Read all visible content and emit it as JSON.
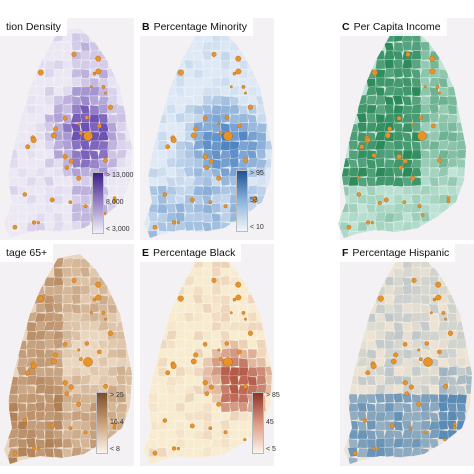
{
  "panels": [
    {
      "letter": "",
      "title": "tion Density",
      "fill": "#6e52b3",
      "base": "#ebe8f4",
      "legend": {
        "high": "> 13,000",
        "mid": "8,000",
        "low": "< 3,000",
        "colors": [
          "#3d1f86",
          "#9a86c8",
          "#f3f1f9"
        ]
      }
    },
    {
      "letter": "B",
      "title": "Percentage Minority",
      "fill": "#3674ba",
      "base": "#dfe9f5",
      "legend": {
        "high": "> 95",
        "mid": "53",
        "low": "< 10",
        "colors": [
          "#1d5394",
          "#8bb4dc",
          "#f1f6fb"
        ]
      }
    },
    {
      "letter": "C",
      "title": "Per Capita Income",
      "fill": "#2b8a5a",
      "base": "#bfe3d6",
      "legend": {
        "high": "",
        "mid": "",
        "low": "",
        "colors": [
          "#1a6b40",
          "#7ec29e",
          "#eef8f3"
        ]
      }
    },
    {
      "letter": "",
      "title": "tage 65+",
      "fill": "#a9764a",
      "base": "#ead6bf",
      "legend": {
        "high": "> 25",
        "mid": "16.4",
        "low": "< 8",
        "colors": [
          "#7a4e2a",
          "#c9a07a",
          "#fbf3ea"
        ]
      }
    },
    {
      "letter": "E",
      "title": "Percentage Black",
      "fill": "#b65a48",
      "base": "#f8ecd0",
      "legend": {
        "high": "> 85",
        "mid": "45",
        "low": "< 5",
        "colors": [
          "#8e3328",
          "#dc9a83",
          "#fdf4ec"
        ]
      }
    },
    {
      "letter": "F",
      "title": "Percentage Hispanic",
      "fill": "#5b8bb4",
      "base": "#ece3d3",
      "legend": {
        "high": "",
        "mid": "",
        "low": "",
        "colors": [
          "#3e6d99",
          "#a9c2d8",
          "#f4efe6"
        ]
      }
    }
  ],
  "colors": {
    "marker": "#e8922a",
    "marker_edge": "#b56a12",
    "boundary": "#ffffff"
  }
}
